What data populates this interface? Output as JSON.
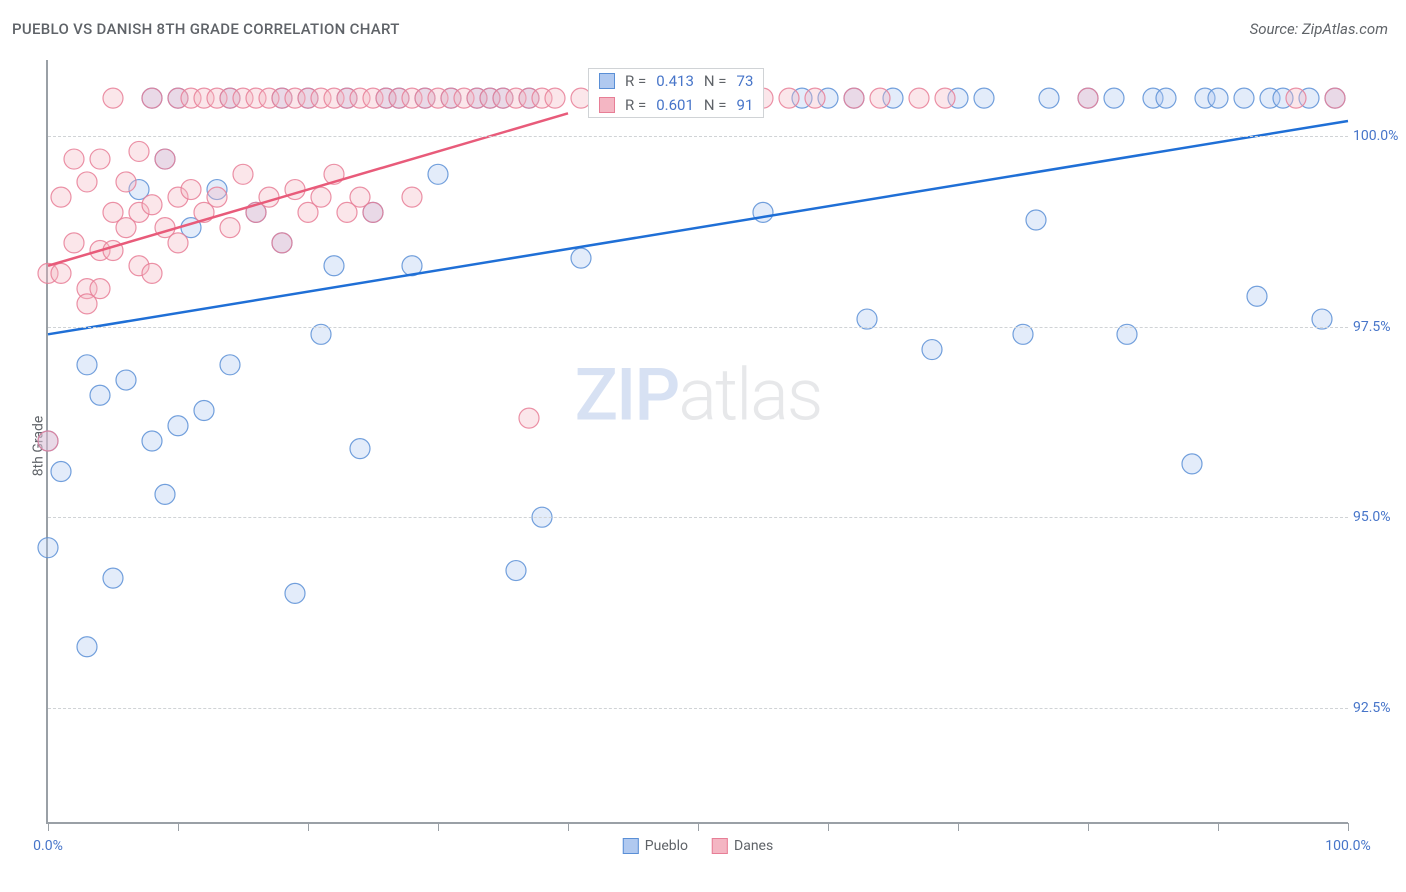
{
  "title": "PUEBLO VS DANISH 8TH GRADE CORRELATION CHART",
  "source": "Source: ZipAtlas.com",
  "y_axis_label": "8th Grade",
  "watermark_zip": "ZIP",
  "watermark_atlas": "atlas",
  "chart": {
    "type": "scatter",
    "background_color": "#ffffff",
    "grid_color": "#d0d3d6",
    "xlim": [
      0,
      100
    ],
    "ylim": [
      91.0,
      101.0
    ],
    "y_ticks": [
      92.5,
      95.0,
      97.5,
      100.0
    ],
    "y_tick_labels": [
      "92.5%",
      "95.0%",
      "97.5%",
      "100.0%"
    ],
    "x_ticks": [
      0,
      10,
      20,
      30,
      40,
      50,
      60,
      70,
      80,
      90,
      100
    ],
    "x_tick_labels": {
      "0": "0.0%",
      "100": "100.0%"
    },
    "marker_radius": 10,
    "marker_fill_opacity": 0.35,
    "marker_stroke_opacity": 0.85,
    "marker_stroke_width": 1.2,
    "line_width": 2.5,
    "legend_box_size": 14,
    "series": [
      {
        "name": "Pueblo",
        "color": "#b0c9f0",
        "stroke_color": "#5a8fd6",
        "line_color": "#1f6fd6",
        "R": "0.413",
        "N": "73",
        "trend": {
          "x1": 0,
          "y1": 97.4,
          "x2": 100,
          "y2": 100.2
        },
        "points": [
          [
            0,
            96.0
          ],
          [
            0,
            94.6
          ],
          [
            1,
            95.6
          ],
          [
            3,
            97.0
          ],
          [
            3,
            93.3
          ],
          [
            4,
            96.6
          ],
          [
            5,
            94.2
          ],
          [
            6,
            96.8
          ],
          [
            7,
            99.3
          ],
          [
            8,
            100.5
          ],
          [
            8,
            96.0
          ],
          [
            9,
            99.7
          ],
          [
            9,
            95.3
          ],
          [
            10,
            96.2
          ],
          [
            10,
            100.5
          ],
          [
            11,
            98.8
          ],
          [
            12,
            96.4
          ],
          [
            13,
            99.3
          ],
          [
            14,
            100.5
          ],
          [
            14,
            97.0
          ],
          [
            16,
            99.0
          ],
          [
            18,
            98.6
          ],
          [
            18,
            100.5
          ],
          [
            19,
            94.0
          ],
          [
            20,
            100.5
          ],
          [
            21,
            97.4
          ],
          [
            22,
            98.3
          ],
          [
            23,
            100.5
          ],
          [
            24,
            95.9
          ],
          [
            25,
            99.0
          ],
          [
            26,
            100.5
          ],
          [
            27,
            100.5
          ],
          [
            28,
            98.3
          ],
          [
            29,
            100.5
          ],
          [
            30,
            99.5
          ],
          [
            31,
            100.5
          ],
          [
            33,
            100.5
          ],
          [
            34,
            100.5
          ],
          [
            35,
            100.5
          ],
          [
            36,
            94.3
          ],
          [
            37,
            100.5
          ],
          [
            38,
            95.0
          ],
          [
            41,
            98.4
          ],
          [
            45,
            100.5
          ],
          [
            48,
            100.5
          ],
          [
            52,
            100.5
          ],
          [
            55,
            99.0
          ],
          [
            58,
            100.5
          ],
          [
            60,
            100.5
          ],
          [
            62,
            100.5
          ],
          [
            63,
            97.6
          ],
          [
            65,
            100.5
          ],
          [
            68,
            97.2
          ],
          [
            70,
            100.5
          ],
          [
            72,
            100.5
          ],
          [
            75,
            97.4
          ],
          [
            76,
            98.9
          ],
          [
            77,
            100.5
          ],
          [
            80,
            100.5
          ],
          [
            82,
            100.5
          ],
          [
            83,
            97.4
          ],
          [
            85,
            100.5
          ],
          [
            86,
            100.5
          ],
          [
            88,
            95.7
          ],
          [
            89,
            100.5
          ],
          [
            90,
            100.5
          ],
          [
            92,
            100.5
          ],
          [
            93,
            97.9
          ],
          [
            94,
            100.5
          ],
          [
            95,
            100.5
          ],
          [
            97,
            100.5
          ],
          [
            98,
            97.6
          ],
          [
            99,
            100.5
          ]
        ]
      },
      {
        "name": "Danes",
        "color": "#f4b6c3",
        "stroke_color": "#e77e96",
        "line_color": "#e85b7a",
        "R": "0.601",
        "N": "91",
        "trend": {
          "x1": 0,
          "y1": 98.3,
          "x2": 40,
          "y2": 100.3
        },
        "points": [
          [
            0,
            98.2
          ],
          [
            0,
            96.0
          ],
          [
            1,
            99.2
          ],
          [
            1,
            98.2
          ],
          [
            2,
            99.7
          ],
          [
            2,
            98.6
          ],
          [
            3,
            99.4
          ],
          [
            3,
            98.0
          ],
          [
            3,
            97.8
          ],
          [
            4,
            99.7
          ],
          [
            4,
            98.5
          ],
          [
            4,
            98.0
          ],
          [
            5,
            99.0
          ],
          [
            5,
            98.5
          ],
          [
            5,
            100.5
          ],
          [
            6,
            99.4
          ],
          [
            6,
            98.8
          ],
          [
            7,
            99.8
          ],
          [
            7,
            99.0
          ],
          [
            7,
            98.3
          ],
          [
            8,
            100.5
          ],
          [
            8,
            99.1
          ],
          [
            8,
            98.2
          ],
          [
            9,
            99.7
          ],
          [
            9,
            98.8
          ],
          [
            10,
            100.5
          ],
          [
            10,
            99.2
          ],
          [
            10,
            98.6
          ],
          [
            11,
            100.5
          ],
          [
            11,
            99.3
          ],
          [
            12,
            100.5
          ],
          [
            12,
            99.0
          ],
          [
            13,
            100.5
          ],
          [
            13,
            99.2
          ],
          [
            14,
            100.5
          ],
          [
            14,
            98.8
          ],
          [
            15,
            100.5
          ],
          [
            15,
            99.5
          ],
          [
            16,
            100.5
          ],
          [
            16,
            99.0
          ],
          [
            17,
            100.5
          ],
          [
            17,
            99.2
          ],
          [
            18,
            100.5
          ],
          [
            18,
            98.6
          ],
          [
            19,
            100.5
          ],
          [
            19,
            99.3
          ],
          [
            20,
            100.5
          ],
          [
            20,
            99.0
          ],
          [
            21,
            100.5
          ],
          [
            21,
            99.2
          ],
          [
            22,
            100.5
          ],
          [
            22,
            99.5
          ],
          [
            23,
            100.5
          ],
          [
            23,
            99.0
          ],
          [
            24,
            100.5
          ],
          [
            24,
            99.2
          ],
          [
            25,
            100.5
          ],
          [
            25,
            99.0
          ],
          [
            26,
            100.5
          ],
          [
            27,
            100.5
          ],
          [
            28,
            100.5
          ],
          [
            28,
            99.2
          ],
          [
            29,
            100.5
          ],
          [
            30,
            100.5
          ],
          [
            31,
            100.5
          ],
          [
            32,
            100.5
          ],
          [
            33,
            100.5
          ],
          [
            34,
            100.5
          ],
          [
            35,
            100.5
          ],
          [
            36,
            100.5
          ],
          [
            37,
            100.5
          ],
          [
            37,
            96.3
          ],
          [
            38,
            100.5
          ],
          [
            39,
            100.5
          ],
          [
            41,
            100.5
          ],
          [
            43,
            100.5
          ],
          [
            45,
            100.5
          ],
          [
            47,
            100.5
          ],
          [
            49,
            100.5
          ],
          [
            51,
            100.5
          ],
          [
            53,
            100.5
          ],
          [
            55,
            100.5
          ],
          [
            57,
            100.5
          ],
          [
            59,
            100.5
          ],
          [
            62,
            100.5
          ],
          [
            64,
            100.5
          ],
          [
            67,
            100.5
          ],
          [
            69,
            100.5
          ],
          [
            80,
            100.5
          ],
          [
            96,
            100.5
          ],
          [
            99,
            100.5
          ]
        ]
      }
    ],
    "bottom_legend_labels": [
      "Pueblo",
      "Danes"
    ],
    "rn_legend": {
      "R_label": "R =",
      "N_label": "N ="
    }
  }
}
